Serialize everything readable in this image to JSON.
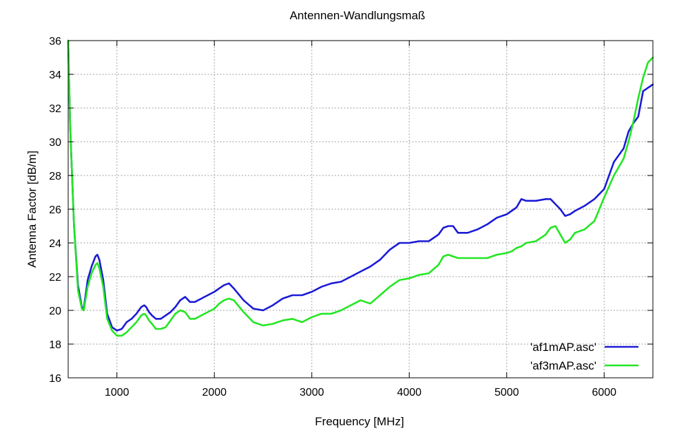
{
  "chart_data": {
    "type": "line",
    "title": "Antennen-Wandlungsmaß",
    "xlabel": "Frequency [MHz]",
    "ylabel": "Antenna Factor [dB/m]",
    "xlim": [
      500,
      6500
    ],
    "ylim": [
      16,
      36
    ],
    "xticks": [
      1000,
      2000,
      3000,
      4000,
      5000,
      6000
    ],
    "yticks": [
      16,
      18,
      20,
      22,
      24,
      26,
      28,
      30,
      32,
      34,
      36
    ],
    "grid": true,
    "legend_position": "bottom-right",
    "series": [
      {
        "name": "'af1mAP.asc'",
        "color": "#1a1ad6",
        "x": [
          500,
          520,
          560,
          600,
          640,
          660,
          700,
          740,
          780,
          800,
          820,
          860,
          900,
          950,
          1000,
          1050,
          1100,
          1150,
          1200,
          1250,
          1280,
          1300,
          1330,
          1360,
          1400,
          1450,
          1500,
          1550,
          1600,
          1650,
          1700,
          1750,
          1800,
          1900,
          2000,
          2050,
          2100,
          2150,
          2200,
          2300,
          2400,
          2500,
          2600,
          2700,
          2800,
          2900,
          3000,
          3100,
          3200,
          3300,
          3400,
          3500,
          3600,
          3700,
          3800,
          3900,
          4000,
          4100,
          4200,
          4300,
          4350,
          4400,
          4450,
          4500,
          4600,
          4700,
          4800,
          4900,
          5000,
          5050,
          5100,
          5150,
          5200,
          5300,
          5400,
          5450,
          5500,
          5550,
          5600,
          5650,
          5700,
          5800,
          5900,
          6000,
          6100,
          6200,
          6250,
          6300,
          6350,
          6400,
          6450,
          6500
        ],
        "y": [
          36,
          31,
          25,
          21.5,
          20.2,
          20.1,
          21.8,
          22.6,
          23.2,
          23.3,
          23.0,
          21.8,
          19.8,
          19.0,
          18.8,
          18.9,
          19.3,
          19.5,
          19.8,
          20.2,
          20.3,
          20.2,
          19.9,
          19.7,
          19.5,
          19.5,
          19.7,
          19.9,
          20.2,
          20.6,
          20.8,
          20.5,
          20.5,
          20.8,
          21.1,
          21.3,
          21.5,
          21.6,
          21.3,
          20.6,
          20.1,
          20.0,
          20.3,
          20.7,
          20.9,
          20.9,
          21.1,
          21.4,
          21.6,
          21.7,
          22.0,
          22.3,
          22.6,
          23.0,
          23.6,
          24.0,
          24.0,
          24.1,
          24.1,
          24.5,
          24.9,
          25.0,
          25.0,
          24.6,
          24.6,
          24.8,
          25.1,
          25.5,
          25.7,
          25.9,
          26.1,
          26.6,
          26.5,
          26.5,
          26.6,
          26.6,
          26.3,
          26.0,
          25.6,
          25.7,
          25.9,
          26.2,
          26.6,
          27.2,
          28.8,
          29.6,
          30.6,
          31.1,
          31.5,
          33.0,
          33.2,
          33.4
        ]
      },
      {
        "name": "'af3mAP.asc'",
        "color": "#22e622",
        "x": [
          500,
          520,
          560,
          600,
          640,
          660,
          700,
          740,
          780,
          800,
          820,
          860,
          900,
          950,
          1000,
          1050,
          1100,
          1150,
          1200,
          1250,
          1280,
          1300,
          1330,
          1360,
          1400,
          1450,
          1500,
          1550,
          1600,
          1650,
          1700,
          1750,
          1800,
          1900,
          2000,
          2050,
          2100,
          2150,
          2200,
          2300,
          2400,
          2500,
          2600,
          2700,
          2800,
          2900,
          3000,
          3100,
          3200,
          3300,
          3400,
          3500,
          3600,
          3700,
          3800,
          3900,
          4000,
          4100,
          4200,
          4300,
          4350,
          4400,
          4450,
          4500,
          4600,
          4700,
          4800,
          4900,
          5000,
          5050,
          5100,
          5150,
          5200,
          5300,
          5400,
          5450,
          5500,
          5550,
          5600,
          5650,
          5700,
          5800,
          5900,
          6000,
          6100,
          6200,
          6250,
          6300,
          6350,
          6400,
          6450,
          6500
        ],
        "y": [
          36,
          31,
          25,
          21.2,
          20.1,
          20.0,
          21.4,
          22.2,
          22.7,
          22.8,
          22.5,
          21.4,
          19.5,
          18.8,
          18.5,
          18.5,
          18.7,
          19.0,
          19.3,
          19.7,
          19.8,
          19.7,
          19.4,
          19.2,
          18.9,
          18.9,
          19.0,
          19.4,
          19.8,
          20.0,
          19.9,
          19.5,
          19.5,
          19.8,
          20.1,
          20.4,
          20.6,
          20.7,
          20.6,
          19.9,
          19.3,
          19.1,
          19.2,
          19.4,
          19.5,
          19.3,
          19.6,
          19.8,
          19.8,
          20.0,
          20.3,
          20.6,
          20.4,
          20.9,
          21.4,
          21.8,
          21.9,
          22.1,
          22.2,
          22.7,
          23.2,
          23.3,
          23.2,
          23.1,
          23.1,
          23.1,
          23.1,
          23.3,
          23.4,
          23.5,
          23.7,
          23.8,
          24.0,
          24.1,
          24.5,
          24.9,
          25.0,
          24.5,
          24.0,
          24.2,
          24.6,
          24.8,
          25.3,
          26.7,
          28.0,
          29.0,
          30.0,
          31.2,
          32.6,
          33.8,
          34.7,
          35.0
        ]
      }
    ]
  }
}
